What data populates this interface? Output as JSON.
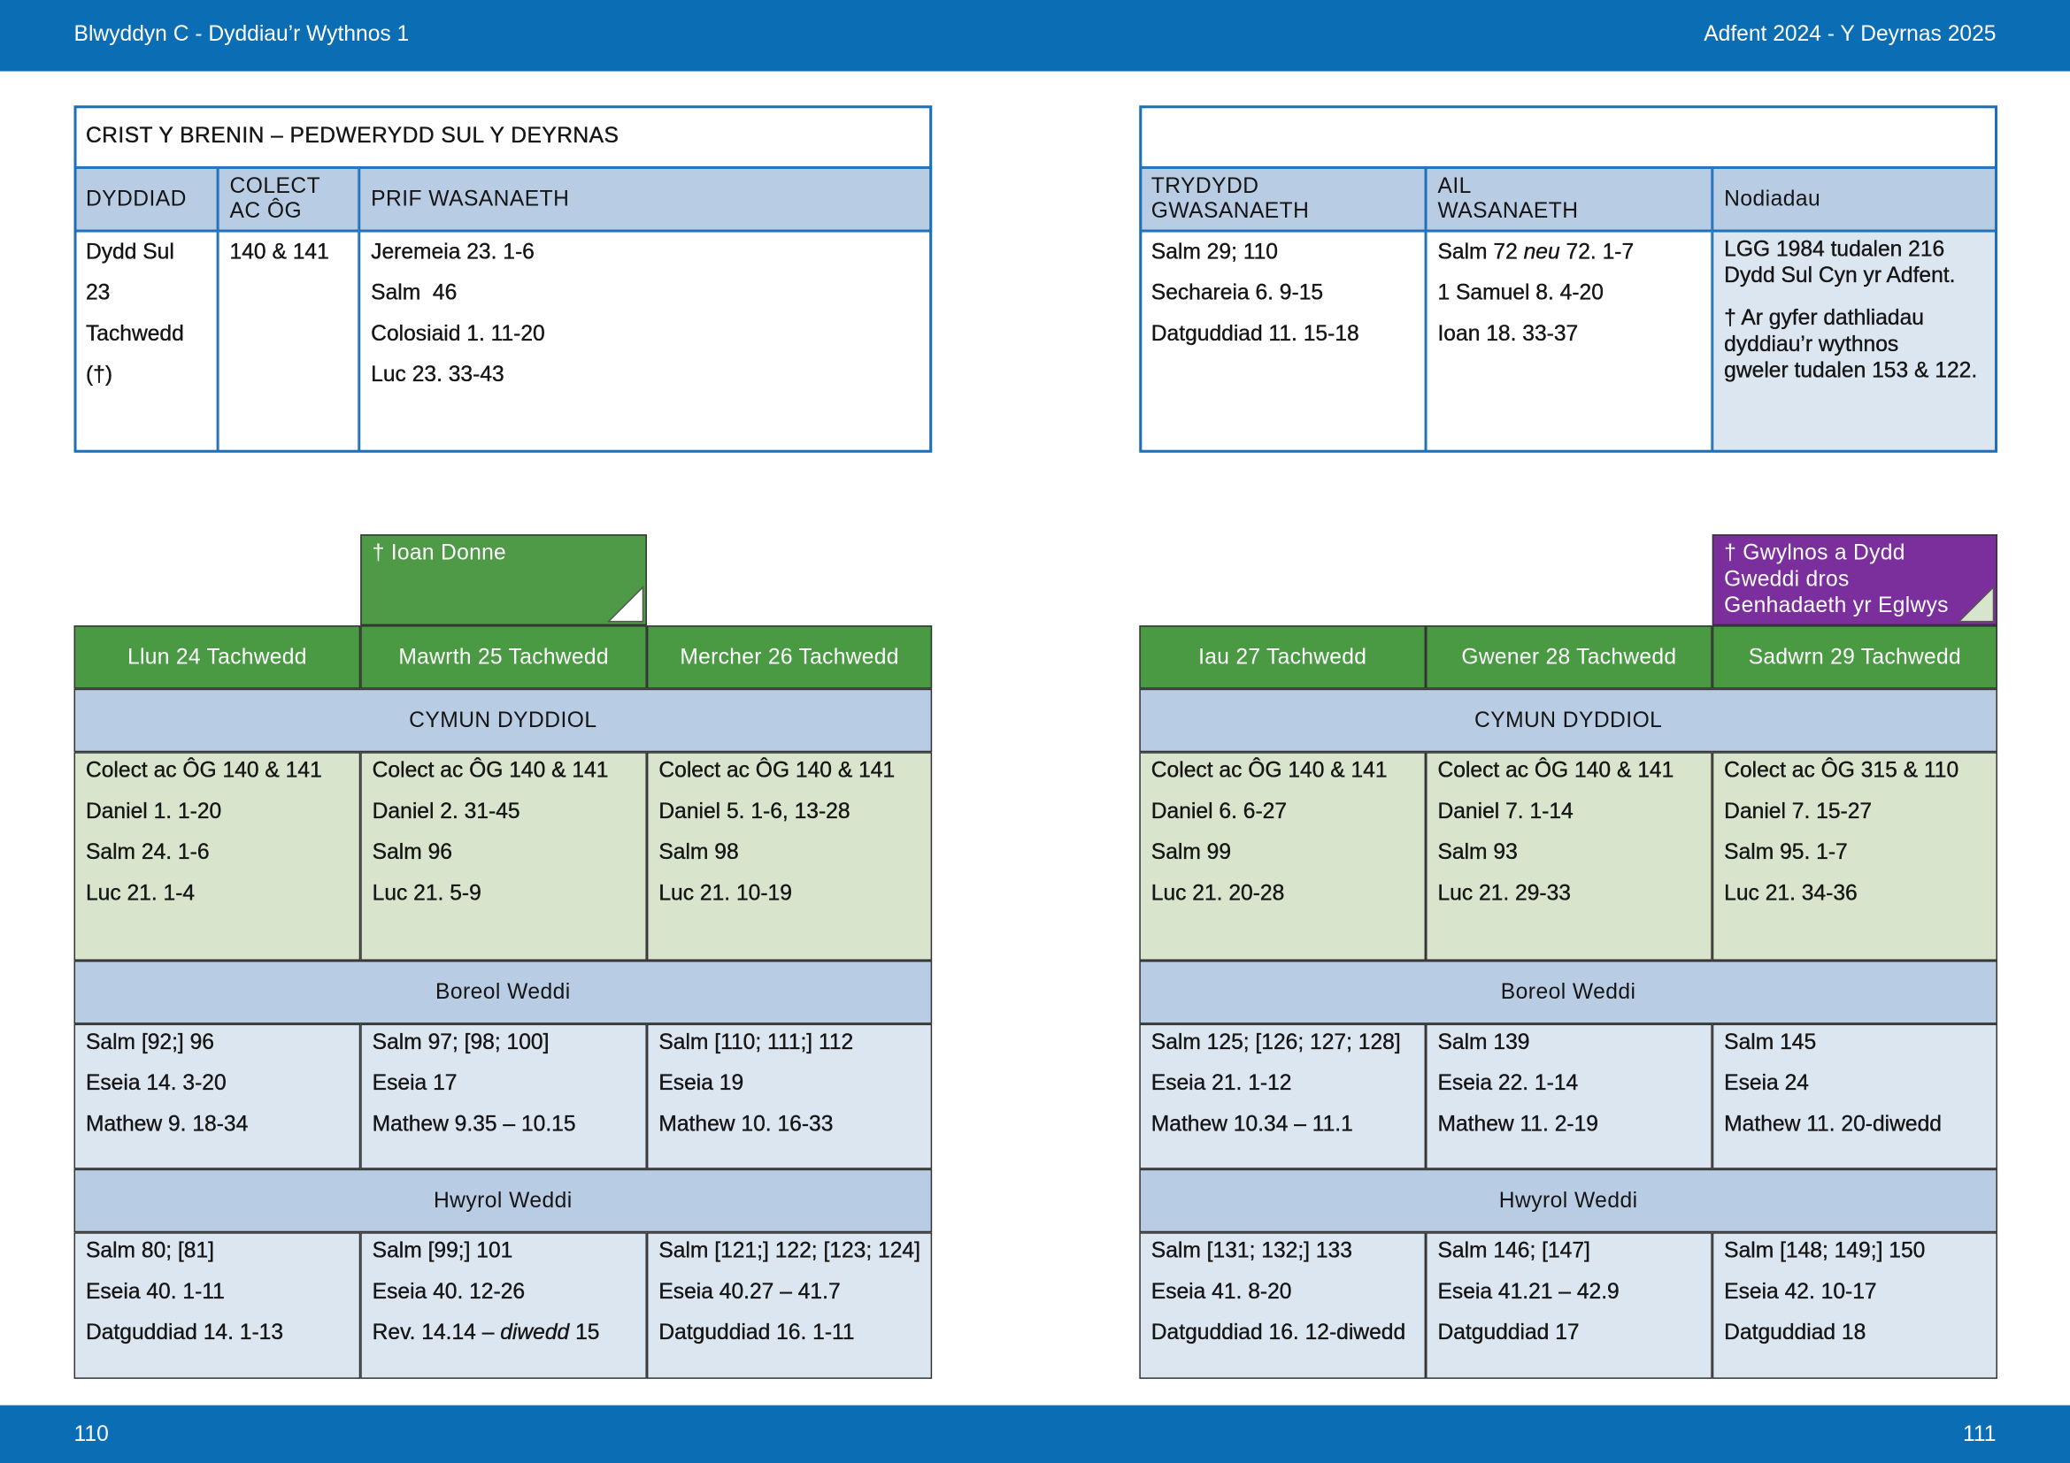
{
  "header": {
    "left": "Blwyddyn  C - Dyddiau’r Wythnos 1",
    "right": "Adfent  2024 - Y Deyrnas 2025"
  },
  "footer": {
    "left": "110",
    "right": "111"
  },
  "sunday": {
    "title": "CRIST Y BRENIN – PEDWERYDD SUL Y DEYRNAS",
    "columns": [
      [
        "DYDDIAD"
      ],
      [
        "COLECT",
        "AC ÔG"
      ],
      [
        "PRIF WASANAETH"
      ],
      [
        "TRYDYDD",
        "GWASANAETH"
      ],
      [
        "AIL",
        "WASANAETH"
      ],
      [
        "Nodiadau"
      ]
    ],
    "cells": [
      [
        "Dydd Sul",
        "23",
        "Tachwedd",
        "(†)"
      ],
      [
        "140 & 141"
      ],
      [
        "Jeremeia 23. 1-6",
        "Salm  46",
        "Colosiaid 1. 11-20",
        "Luc 23. 33-43"
      ],
      [
        "Salm 29; 110",
        "Sechareia 6. 9-15",
        "Datguddiad 11. 15-18"
      ],
      [
        [
          "Salm 72 ",
          "neu",
          " 72. 1-7"
        ],
        "1 Samuel 8. 4-20",
        "Ioan 18. 33-37"
      ]
    ],
    "notes": [
      [
        "LGG 1984 tudalen 216",
        "Dydd Sul Cyn yr Adfent."
      ],
      [
        "† Ar gyfer dathliadau",
        "dyddiau’r wythnos",
        "gweler tudalen 153 & 122."
      ]
    ]
  },
  "halves": [
    {
      "sections": [
        "CYMUN DYDDIOL",
        "Boreol Weddi",
        "Hwyrol Weddi"
      ],
      "days": [
        {
          "name": "Llun 24 Tachwedd",
          "cymun": [
            "Colect ac ÔG 140 & 141",
            "Daniel 1. 1-20",
            "Salm 24. 1-6",
            "Luc 21. 1-4"
          ],
          "boreol": [
            "Salm [92;] 96",
            "Eseia 14. 3-20",
            "Mathew 9. 18-34"
          ],
          "hwyrol": [
            "Salm 80; [81]",
            "Eseia 40. 1-11",
            "Datguddiad 14. 1-13"
          ]
        },
        {
          "name": "Mawrth 25 Tachwedd",
          "tab": {
            "lines": [
              "† Ioan Donne"
            ],
            "color": "#4e9a47",
            "corner": "#ffffff"
          },
          "cymun": [
            "Colect ac ÔG 140 & 141",
            "Daniel 2. 31-45",
            "Salm 96",
            "Luc 21. 5-9"
          ],
          "boreol": [
            "Salm 97; [98; 100]",
            "Eseia 17",
            "Mathew 9.35 – 10.15"
          ],
          "hwyrol": [
            "Salm [99;] 101",
            "Eseia 40. 12-26",
            [
              "Rev. 14.14 – ",
              "diwedd",
              " 15"
            ]
          ]
        },
        {
          "name": "Mercher 26 Tachwedd",
          "cymun": [
            "Colect ac ÔG 140 & 141",
            "Daniel 5. 1-6, 13-28",
            "Salm 98",
            "Luc 21. 10-19"
          ],
          "boreol": [
            "Salm [110; 111;] 112",
            "Eseia 19",
            "Mathew 10. 16-33"
          ],
          "hwyrol": [
            "Salm [121;] 122; [123; 124]",
            "Eseia 40.27 – 41.7",
            "Datguddiad 16. 1-11"
          ]
        }
      ]
    },
    {
      "sections": [
        "CYMUN DYDDIOL",
        "Boreol Weddi",
        "Hwyrol Weddi"
      ],
      "days": [
        {
          "name": "Iau 27 Tachwedd",
          "cymun": [
            "Colect ac ÔG 140 & 141",
            "Daniel 6. 6-27",
            "Salm 99",
            "Luc 21. 20-28"
          ],
          "boreol": [
            "Salm 125; [126; 127; 128]",
            "Eseia 21. 1-12",
            "Mathew 10.34 – 11.1"
          ],
          "hwyrol": [
            "Salm [131; 132;] 133",
            "Eseia 41. 8-20",
            "Datguddiad 16. 12-diwedd"
          ]
        },
        {
          "name": "Gwener 28 Tachwedd",
          "cymun": [
            "Colect ac ÔG 140 & 141",
            "Daniel 7. 1-14",
            "Salm 93",
            "Luc 21. 29-33"
          ],
          "boreol": [
            "Salm 139",
            "Eseia 22. 1-14",
            "Mathew 11. 2-19"
          ],
          "hwyrol": [
            "Salm 146; [147]",
            "Eseia 41.21 – 42.9",
            "Datguddiad 17"
          ]
        },
        {
          "name": "Sadwrn 29 Tachwedd",
          "tab": {
            "lines": [
              "† Gwylnos a Dydd",
              "Gweddi dros",
              "Genhadaeth yr Eglwys"
            ],
            "color": "#7b2f9c",
            "corner": "#d8e4cc"
          },
          "cymun": [
            "Colect ac ÔG 315 & 110",
            "Daniel 7. 15-27",
            "Salm 95. 1-7",
            "Luc 21. 34-36"
          ],
          "boreol": [
            "Salm 145",
            "Eseia 24",
            "Mathew 11. 20-diwedd"
          ],
          "hwyrol": [
            "Salm [148; 149;] 150",
            "Eseia 42. 10-17",
            "Datguddiad 18"
          ]
        }
      ]
    }
  ]
}
